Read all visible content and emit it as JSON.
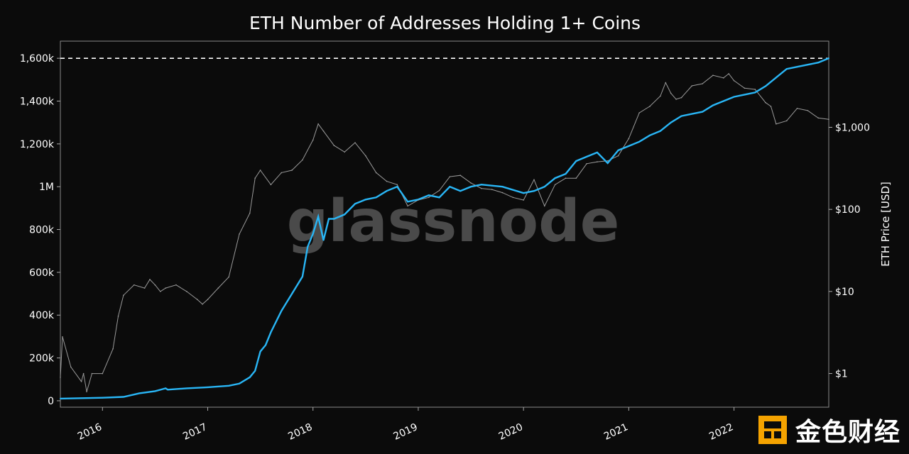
{
  "chart_data": {
    "type": "line",
    "title": "ETH Number of Addresses Holding 1+ Coins",
    "xlabel": "",
    "ylabel": "",
    "y2label": "ETH Price [USD]",
    "watermark": "glassnode",
    "x_ticks": [
      "2016",
      "2017",
      "2018",
      "2019",
      "2020",
      "2021",
      "2022"
    ],
    "y_ticks": [
      {
        "value": 0,
        "label": "0"
      },
      {
        "value": 200000,
        "label": "200k"
      },
      {
        "value": 400000,
        "label": "400k"
      },
      {
        "value": 600000,
        "label": "600k"
      },
      {
        "value": 800000,
        "label": "800k"
      },
      {
        "value": 1000000,
        "label": "1M"
      },
      {
        "value": 1200000,
        "label": "1,200k"
      },
      {
        "value": 1400000,
        "label": "1,400k"
      },
      {
        "value": 1600000,
        "label": "1,600k"
      }
    ],
    "y2_ticks": [
      {
        "value": 1,
        "label": "$1"
      },
      {
        "value": 10,
        "label": "$10"
      },
      {
        "value": 100,
        "label": "$100"
      },
      {
        "value": 1000,
        "label": "$1,000"
      }
    ],
    "xlim": [
      2015.6,
      2022.9
    ],
    "ylim": [
      -30000,
      1680000
    ],
    "y2lim_log10": [
      -0.41,
      4.05
    ],
    "reference_line": {
      "value": 1600000,
      "style": "dashed",
      "color": "#ffffff"
    },
    "series": [
      {
        "name": "Addresses Holding 1+ Coins",
        "axis": "left",
        "color": "#29b6f6",
        "x": [
          2015.6,
          2015.8,
          2016.0,
          2016.2,
          2016.35,
          2016.5,
          2016.6,
          2016.62,
          2016.8,
          2017.0,
          2017.2,
          2017.3,
          2017.4,
          2017.45,
          2017.5,
          2017.55,
          2017.6,
          2017.7,
          2017.8,
          2017.9,
          2017.95,
          2018.0,
          2018.05,
          2018.1,
          2018.15,
          2018.2,
          2018.3,
          2018.4,
          2018.5,
          2018.6,
          2018.7,
          2018.8,
          2018.9,
          2019.0,
          2019.1,
          2019.2,
          2019.3,
          2019.4,
          2019.5,
          2019.6,
          2019.8,
          2020.0,
          2020.1,
          2020.2,
          2020.3,
          2020.4,
          2020.5,
          2020.6,
          2020.7,
          2020.8,
          2020.9,
          2021.0,
          2021.05,
          2021.1,
          2021.2,
          2021.3,
          2021.4,
          2021.5,
          2021.6,
          2021.7,
          2021.8,
          2021.9,
          2022.0,
          2022.1,
          2022.2,
          2022.3,
          2022.4,
          2022.5,
          2022.6,
          2022.7,
          2022.8,
          2022.9
        ],
        "values": [
          10000,
          12000,
          14000,
          18000,
          35000,
          45000,
          58000,
          52000,
          58000,
          63000,
          70000,
          80000,
          110000,
          140000,
          230000,
          260000,
          320000,
          420000,
          500000,
          580000,
          720000,
          780000,
          860000,
          750000,
          850000,
          850000,
          870000,
          920000,
          940000,
          950000,
          980000,
          1000000,
          930000,
          940000,
          960000,
          950000,
          1000000,
          980000,
          1000000,
          1010000,
          1000000,
          970000,
          980000,
          1000000,
          1040000,
          1060000,
          1120000,
          1140000,
          1160000,
          1110000,
          1170000,
          1190000,
          1200000,
          1210000,
          1240000,
          1260000,
          1300000,
          1330000,
          1340000,
          1350000,
          1380000,
          1400000,
          1420000,
          1430000,
          1440000,
          1470000,
          1510000,
          1550000,
          1560000,
          1570000,
          1580000,
          1600000
        ]
      },
      {
        "name": "ETH Price [USD]",
        "axis": "right",
        "color": "#9a9a9a",
        "x": [
          2015.6,
          2015.62,
          2015.7,
          2015.8,
          2015.82,
          2015.85,
          2015.9,
          2016.0,
          2016.1,
          2016.15,
          2016.2,
          2016.3,
          2016.4,
          2016.45,
          2016.5,
          2016.55,
          2016.6,
          2016.7,
          2016.8,
          2016.9,
          2016.95,
          2017.0,
          2017.1,
          2017.2,
          2017.3,
          2017.4,
          2017.45,
          2017.5,
          2017.6,
          2017.7,
          2017.8,
          2017.9,
          2018.0,
          2018.05,
          2018.1,
          2018.2,
          2018.3,
          2018.4,
          2018.5,
          2018.6,
          2018.7,
          2018.8,
          2018.9,
          2019.0,
          2019.1,
          2019.2,
          2019.3,
          2019.4,
          2019.5,
          2019.6,
          2019.7,
          2019.8,
          2019.9,
          2020.0,
          2020.1,
          2020.2,
          2020.3,
          2020.4,
          2020.5,
          2020.6,
          2020.7,
          2020.8,
          2020.9,
          2021.0,
          2021.1,
          2021.2,
          2021.3,
          2021.35,
          2021.4,
          2021.45,
          2021.5,
          2021.6,
          2021.7,
          2021.8,
          2021.9,
          2021.95,
          2022.0,
          2022.1,
          2022.2,
          2022.3,
          2022.35,
          2022.4,
          2022.5,
          2022.6,
          2022.7,
          2022.8,
          2022.9
        ],
        "values": [
          0.9,
          2.8,
          1.2,
          0.8,
          1.0,
          0.6,
          1.0,
          1.0,
          2.0,
          5.0,
          9.0,
          12.0,
          11.0,
          14.0,
          12.0,
          10.0,
          11.0,
          12.0,
          10.0,
          8.0,
          7.0,
          8.0,
          11.0,
          15.0,
          50.0,
          90.0,
          240.0,
          300.0,
          200.0,
          280.0,
          300.0,
          400.0,
          700.0,
          1100.0,
          900.0,
          600.0,
          500.0,
          650.0,
          450.0,
          280.0,
          220.0,
          200.0,
          110.0,
          130.0,
          140.0,
          170.0,
          250.0,
          260.0,
          210.0,
          180.0,
          175.0,
          160.0,
          140.0,
          130.0,
          230.0,
          110.0,
          200.0,
          240.0,
          240.0,
          360.0,
          380.0,
          390.0,
          450.0,
          730.0,
          1500.0,
          1800.0,
          2400.0,
          3500.0,
          2600.0,
          2200.0,
          2300.0,
          3200.0,
          3400.0,
          4300.0,
          4000.0,
          4500.0,
          3700.0,
          3000.0,
          2900.0,
          2000.0,
          1800.0,
          1100.0,
          1200.0,
          1700.0,
          1600.0,
          1300.0,
          1250.0
        ]
      }
    ]
  },
  "branding": {
    "text": "金色财经"
  }
}
